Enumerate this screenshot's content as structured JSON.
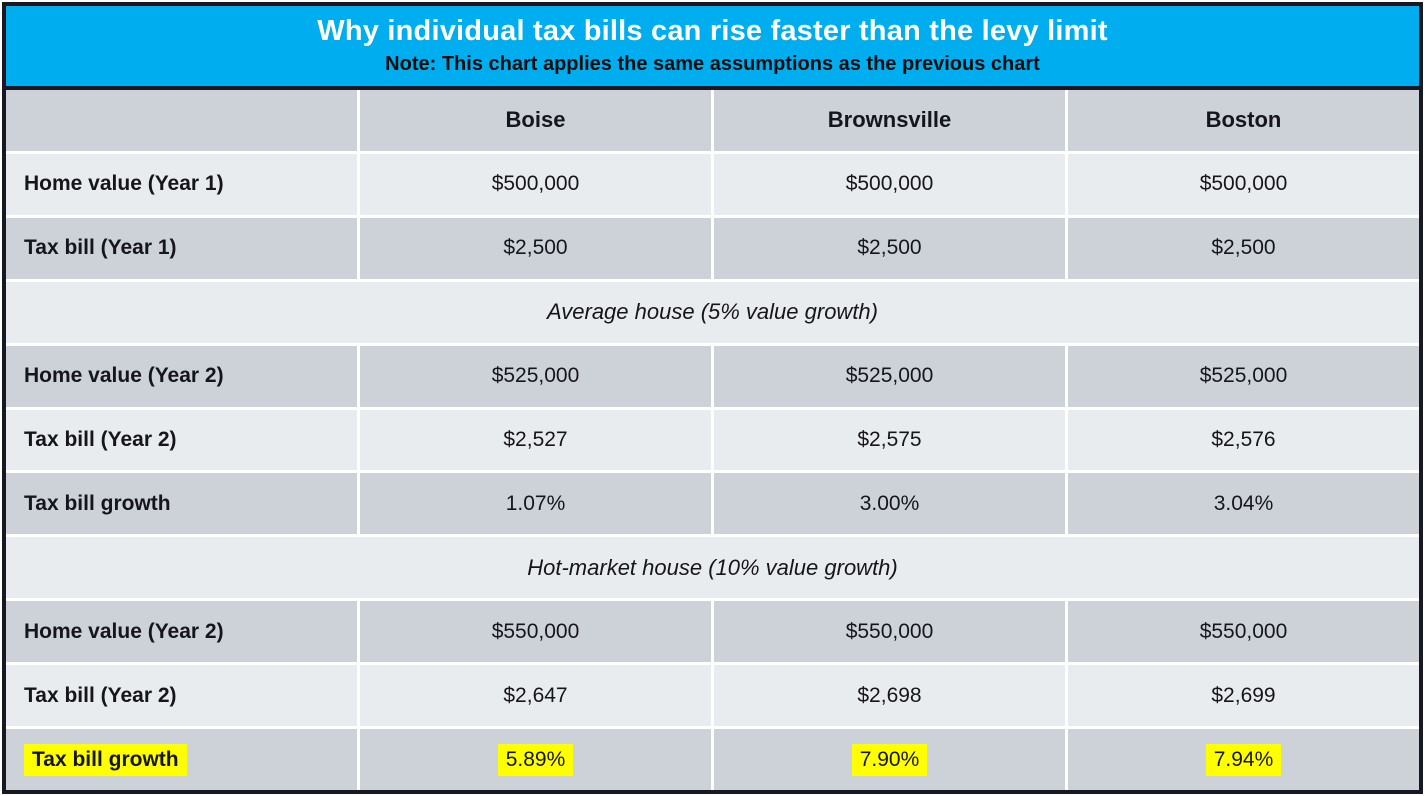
{
  "colors": {
    "banner_blue": "#00AEEF",
    "border_dark": "#171822",
    "row_dark": "#CDD2D9",
    "row_light": "#E9ECEF",
    "highlight_yellow": "#FFFF00",
    "title_text": "#FFFFFF",
    "body_text": "#15161C"
  },
  "chart_data": {
    "type": "table",
    "title": "Why individual tax bills can rise faster than the levy limit",
    "subtitle": "Note: This chart applies the same assumptions as the previous chart",
    "columns": [
      "Boise",
      "Brownsville",
      "Boston"
    ],
    "rows": [
      {
        "type": "data",
        "label": "Home value (Year 1)",
        "values": [
          "$500,000",
          "$500,000",
          "$500,000"
        ],
        "highlight": false
      },
      {
        "type": "data",
        "label": "Tax bill (Year 1)",
        "values": [
          "$2,500",
          "$2,500",
          "$2,500"
        ],
        "highlight": false
      },
      {
        "type": "section",
        "label": "Average house (5% value growth)"
      },
      {
        "type": "data",
        "label": "Home value (Year 2)",
        "values": [
          "$525,000",
          "$525,000",
          "$525,000"
        ],
        "highlight": false
      },
      {
        "type": "data",
        "label": "Tax bill (Year 2)",
        "values": [
          "$2,527",
          "$2,575",
          "$2,576"
        ],
        "highlight": false
      },
      {
        "type": "data",
        "label": "Tax bill growth",
        "values": [
          "1.07%",
          "3.00%",
          "3.04%"
        ],
        "highlight": false
      },
      {
        "type": "section",
        "label": "Hot-market house (10% value growth)"
      },
      {
        "type": "data",
        "label": "Home value (Year 2)",
        "values": [
          "$550,000",
          "$550,000",
          "$550,000"
        ],
        "highlight": false
      },
      {
        "type": "data",
        "label": "Tax bill (Year 2)",
        "values": [
          "$2,647",
          "$2,698",
          "$2,699"
        ],
        "highlight": false
      },
      {
        "type": "data",
        "label": "Tax bill growth",
        "values": [
          "5.89%",
          "7.90%",
          "7.94%"
        ],
        "highlight": true
      }
    ]
  }
}
